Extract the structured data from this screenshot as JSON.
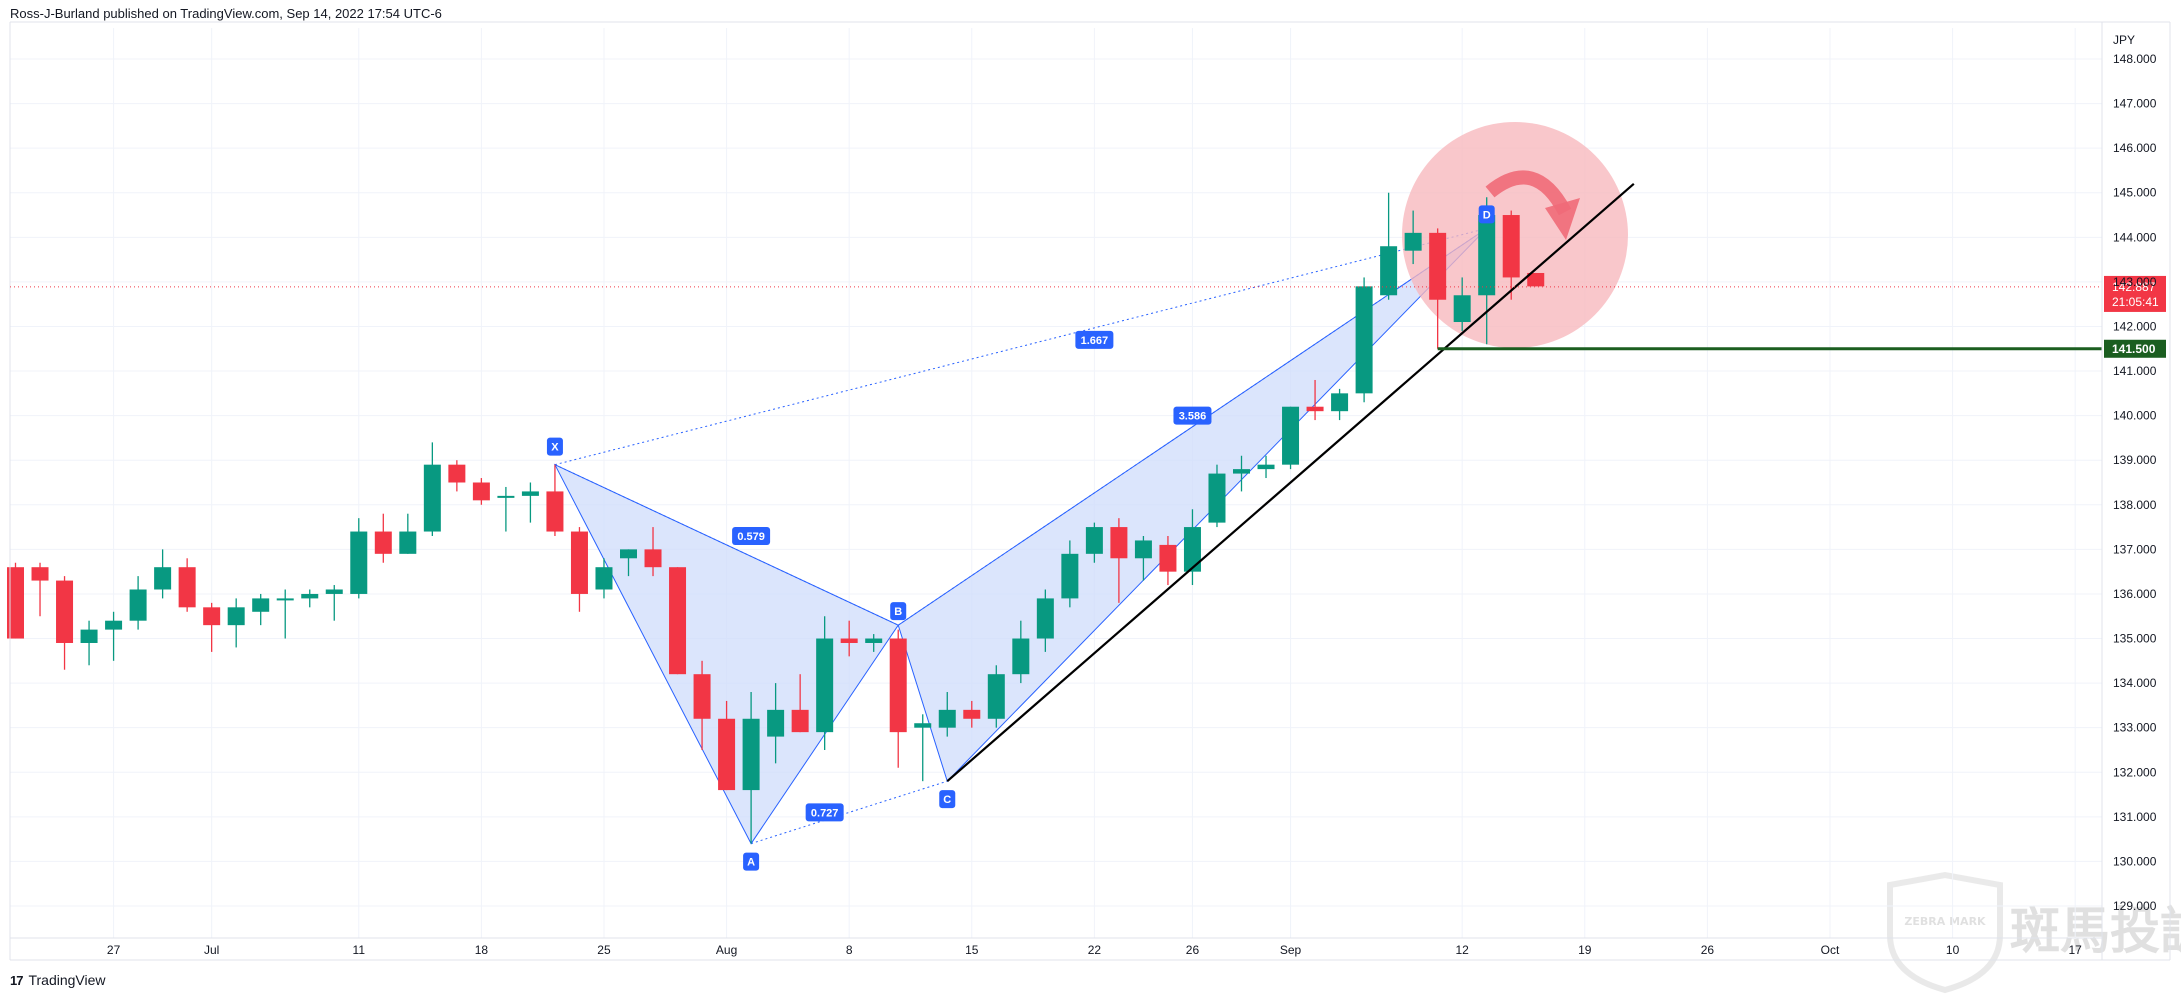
{
  "header": {
    "text": "Ross-J-Burland published on TradingView.com, Sep 14, 2022 17:54 UTC-6"
  },
  "footer": {
    "logo": "17",
    "brand": "TradingView"
  },
  "watermark": {
    "badge": "ZEBRA MARK",
    "text": "斑馬投訴"
  },
  "colors": {
    "up": "#089981",
    "down": "#f23645",
    "pattern_fill": "#cfdcfb",
    "pattern_line": "#2962ff",
    "support": "#1b5e20",
    "price_label": "#f23645",
    "circle": "#f7b7bd"
  },
  "chart_data": {
    "type": "candlestick",
    "symbol_currency": "JPY",
    "ylim": [
      128.6,
      148.4
    ],
    "y_ticks": [
      129,
      130,
      131,
      132,
      133,
      134,
      135,
      136,
      137,
      138,
      139,
      140,
      141,
      142,
      143,
      144,
      145,
      146,
      147,
      148
    ],
    "x_ticks": [
      {
        "label": "27",
        "date": "2022-06-27"
      },
      {
        "label": "Jul",
        "date": "2022-07-01"
      },
      {
        "label": "11",
        "date": "2022-07-11"
      },
      {
        "label": "18",
        "date": "2022-07-18"
      },
      {
        "label": "25",
        "date": "2022-07-25"
      },
      {
        "label": "Aug",
        "date": "2022-08-01"
      },
      {
        "label": "8",
        "date": "2022-08-08"
      },
      {
        "label": "15",
        "date": "2022-08-15"
      },
      {
        "label": "22",
        "date": "2022-08-22"
      },
      {
        "label": "26",
        "date": "2022-08-26"
      },
      {
        "label": "Sep",
        "date": "2022-09-01"
      },
      {
        "label": "12",
        "date": "2022-09-12"
      },
      {
        "label": "19",
        "date": "2022-09-19"
      },
      {
        "label": "26",
        "date": "2022-09-26"
      },
      {
        "label": "Oct",
        "date": "2022-10-03"
      },
      {
        "label": "10",
        "date": "2022-10-10"
      },
      {
        "label": "17",
        "date": "2022-10-17"
      }
    ],
    "candles": [
      {
        "date": "2022-06-21",
        "o": 136.6,
        "h": 136.7,
        "l": 135.0,
        "c": 135.0
      },
      {
        "date": "2022-06-22",
        "o": 136.6,
        "h": 136.7,
        "l": 135.5,
        "c": 136.3
      },
      {
        "date": "2022-06-23",
        "o": 136.3,
        "h": 136.4,
        "l": 134.3,
        "c": 134.9
      },
      {
        "date": "2022-06-24",
        "o": 134.9,
        "h": 135.4,
        "l": 134.4,
        "c": 135.2
      },
      {
        "date": "2022-06-27",
        "o": 135.2,
        "h": 135.6,
        "l": 134.5,
        "c": 135.4
      },
      {
        "date": "2022-06-28",
        "o": 135.4,
        "h": 136.4,
        "l": 135.2,
        "c": 136.1
      },
      {
        "date": "2022-06-29",
        "o": 136.1,
        "h": 137.0,
        "l": 135.9,
        "c": 136.6
      },
      {
        "date": "2022-06-30",
        "o": 136.6,
        "h": 136.8,
        "l": 135.6,
        "c": 135.7
      },
      {
        "date": "2022-07-01",
        "o": 135.7,
        "h": 135.8,
        "l": 134.7,
        "c": 135.3
      },
      {
        "date": "2022-07-04",
        "o": 135.3,
        "h": 135.9,
        "l": 134.8,
        "c": 135.7
      },
      {
        "date": "2022-07-05",
        "o": 135.6,
        "h": 136.0,
        "l": 135.3,
        "c": 135.9
      },
      {
        "date": "2022-07-06",
        "o": 135.9,
        "h": 136.1,
        "l": 135.0,
        "c": 135.9
      },
      {
        "date": "2022-07-07",
        "o": 135.9,
        "h": 136.1,
        "l": 135.7,
        "c": 136.0
      },
      {
        "date": "2022-07-08",
        "o": 136.0,
        "h": 136.2,
        "l": 135.4,
        "c": 136.1
      },
      {
        "date": "2022-07-11",
        "o": 136.0,
        "h": 137.7,
        "l": 135.9,
        "c": 137.4
      },
      {
        "date": "2022-07-12",
        "o": 137.4,
        "h": 137.8,
        "l": 136.7,
        "c": 136.9
      },
      {
        "date": "2022-07-13",
        "o": 136.9,
        "h": 137.8,
        "l": 136.9,
        "c": 137.4
      },
      {
        "date": "2022-07-14",
        "o": 137.4,
        "h": 139.4,
        "l": 137.3,
        "c": 138.9
      },
      {
        "date": "2022-07-15",
        "o": 138.9,
        "h": 139.0,
        "l": 138.3,
        "c": 138.5
      },
      {
        "date": "2022-07-18",
        "o": 138.5,
        "h": 138.6,
        "l": 138.0,
        "c": 138.1
      },
      {
        "date": "2022-07-19",
        "o": 138.2,
        "h": 138.4,
        "l": 137.4,
        "c": 138.2
      },
      {
        "date": "2022-07-20",
        "o": 138.2,
        "h": 138.5,
        "l": 137.6,
        "c": 138.3
      },
      {
        "date": "2022-07-21",
        "o": 138.3,
        "h": 138.9,
        "l": 137.3,
        "c": 137.4
      },
      {
        "date": "2022-07-22",
        "o": 137.4,
        "h": 137.5,
        "l": 135.6,
        "c": 136.0
      },
      {
        "date": "2022-07-25",
        "o": 136.1,
        "h": 136.8,
        "l": 135.9,
        "c": 136.6
      },
      {
        "date": "2022-07-26",
        "o": 136.8,
        "h": 137.0,
        "l": 136.4,
        "c": 137.0
      },
      {
        "date": "2022-07-27",
        "o": 137.0,
        "h": 137.5,
        "l": 136.4,
        "c": 136.6
      },
      {
        "date": "2022-07-28",
        "o": 136.6,
        "h": 136.6,
        "l": 134.2,
        "c": 134.2
      },
      {
        "date": "2022-07-29",
        "o": 134.2,
        "h": 134.5,
        "l": 132.5,
        "c": 133.2
      },
      {
        "date": "2022-08-01",
        "o": 133.2,
        "h": 133.6,
        "l": 131.6,
        "c": 131.6
      },
      {
        "date": "2022-08-02",
        "o": 131.6,
        "h": 133.8,
        "l": 130.4,
        "c": 133.2
      },
      {
        "date": "2022-08-03",
        "o": 132.8,
        "h": 134.0,
        "l": 132.2,
        "c": 133.4
      },
      {
        "date": "2022-08-04",
        "o": 133.4,
        "h": 134.2,
        "l": 132.9,
        "c": 132.9
      },
      {
        "date": "2022-08-05",
        "o": 132.9,
        "h": 135.5,
        "l": 132.5,
        "c": 135.0
      },
      {
        "date": "2022-08-08",
        "o": 135.0,
        "h": 135.4,
        "l": 134.6,
        "c": 134.9
      },
      {
        "date": "2022-08-09",
        "o": 134.9,
        "h": 135.1,
        "l": 134.7,
        "c": 135.0
      },
      {
        "date": "2022-08-10",
        "o": 135.0,
        "h": 135.2,
        "l": 132.1,
        "c": 132.9
      },
      {
        "date": "2022-08-11",
        "o": 133.0,
        "h": 133.3,
        "l": 131.8,
        "c": 133.1
      },
      {
        "date": "2022-08-12",
        "o": 133.0,
        "h": 133.8,
        "l": 132.8,
        "c": 133.4
      },
      {
        "date": "2022-08-15",
        "o": 133.4,
        "h": 133.6,
        "l": 133.0,
        "c": 133.2
      },
      {
        "date": "2022-08-16",
        "o": 133.2,
        "h": 134.4,
        "l": 133.0,
        "c": 134.2
      },
      {
        "date": "2022-08-17",
        "o": 134.2,
        "h": 135.4,
        "l": 134.0,
        "c": 135.0
      },
      {
        "date": "2022-08-18",
        "o": 135.0,
        "h": 136.1,
        "l": 134.7,
        "c": 135.9
      },
      {
        "date": "2022-08-19",
        "o": 135.9,
        "h": 137.2,
        "l": 135.7,
        "c": 136.9
      },
      {
        "date": "2022-08-22",
        "o": 136.9,
        "h": 137.6,
        "l": 136.7,
        "c": 137.5
      },
      {
        "date": "2022-08-23",
        "o": 137.5,
        "h": 137.7,
        "l": 135.8,
        "c": 136.8
      },
      {
        "date": "2022-08-24",
        "o": 136.8,
        "h": 137.3,
        "l": 136.3,
        "c": 137.2
      },
      {
        "date": "2022-08-25",
        "o": 137.1,
        "h": 137.3,
        "l": 136.2,
        "c": 136.5
      },
      {
        "date": "2022-08-26",
        "o": 136.5,
        "h": 137.9,
        "l": 136.2,
        "c": 137.5
      },
      {
        "date": "2022-08-29",
        "o": 137.6,
        "h": 138.9,
        "l": 137.5,
        "c": 138.7
      },
      {
        "date": "2022-08-30",
        "o": 138.7,
        "h": 139.1,
        "l": 138.3,
        "c": 138.8
      },
      {
        "date": "2022-08-31",
        "o": 138.8,
        "h": 139.1,
        "l": 138.6,
        "c": 138.9
      },
      {
        "date": "2022-09-01",
        "o": 138.9,
        "h": 140.2,
        "l": 138.8,
        "c": 140.2
      },
      {
        "date": "2022-09-02",
        "o": 140.2,
        "h": 140.8,
        "l": 139.9,
        "c": 140.1
      },
      {
        "date": "2022-09-05",
        "o": 140.1,
        "h": 140.6,
        "l": 139.9,
        "c": 140.5
      },
      {
        "date": "2022-09-06",
        "o": 140.5,
        "h": 143.1,
        "l": 140.3,
        "c": 142.9
      },
      {
        "date": "2022-09-07",
        "o": 142.7,
        "h": 145.0,
        "l": 142.6,
        "c": 143.8
      },
      {
        "date": "2022-09-08",
        "o": 143.7,
        "h": 144.6,
        "l": 143.4,
        "c": 144.1
      },
      {
        "date": "2022-09-09",
        "o": 144.1,
        "h": 144.2,
        "l": 141.5,
        "c": 142.6
      },
      {
        "date": "2022-09-12",
        "o": 142.1,
        "h": 143.1,
        "l": 141.9,
        "c": 142.7
      },
      {
        "date": "2022-09-13",
        "o": 142.7,
        "h": 144.9,
        "l": 141.6,
        "c": 144.5
      },
      {
        "date": "2022-09-14",
        "o": 144.5,
        "h": 144.6,
        "l": 142.6,
        "c": 143.1
      },
      {
        "date": "2022-09-15",
        "o": 143.2,
        "h": 143.2,
        "l": 142.9,
        "c": 142.9
      }
    ],
    "pattern": {
      "points": [
        {
          "label": "X",
          "date": "2022-07-21",
          "price": 138.9
        },
        {
          "label": "A",
          "date": "2022-08-02",
          "price": 130.4
        },
        {
          "label": "B",
          "date": "2022-08-10",
          "price": 135.3
        },
        {
          "label": "C",
          "date": "2022-08-12",
          "price": 131.8
        },
        {
          "label": "D",
          "date": "2022-09-13",
          "price": 144.2
        }
      ],
      "ratios": [
        {
          "label": "0.579",
          "date": "2022-08-02",
          "price": 137.3
        },
        {
          "label": "0.727",
          "date": "2022-08-06",
          "price": 131.1
        },
        {
          "label": "1.667",
          "date": "2022-08-22",
          "price": 141.7
        },
        {
          "label": "3.586",
          "date": "2022-08-28",
          "price": 140.0
        }
      ]
    },
    "trendline": {
      "start": {
        "date": "2022-08-12",
        "price": 131.8
      },
      "end": {
        "date": "2022-09-21",
        "price": 145.2
      }
    },
    "support_level": {
      "label": "141.500",
      "price": 141.5,
      "from_date": "2022-09-09"
    },
    "last_price": {
      "label": "142.887",
      "countdown": "21:05:41",
      "price": 142.887
    }
  }
}
